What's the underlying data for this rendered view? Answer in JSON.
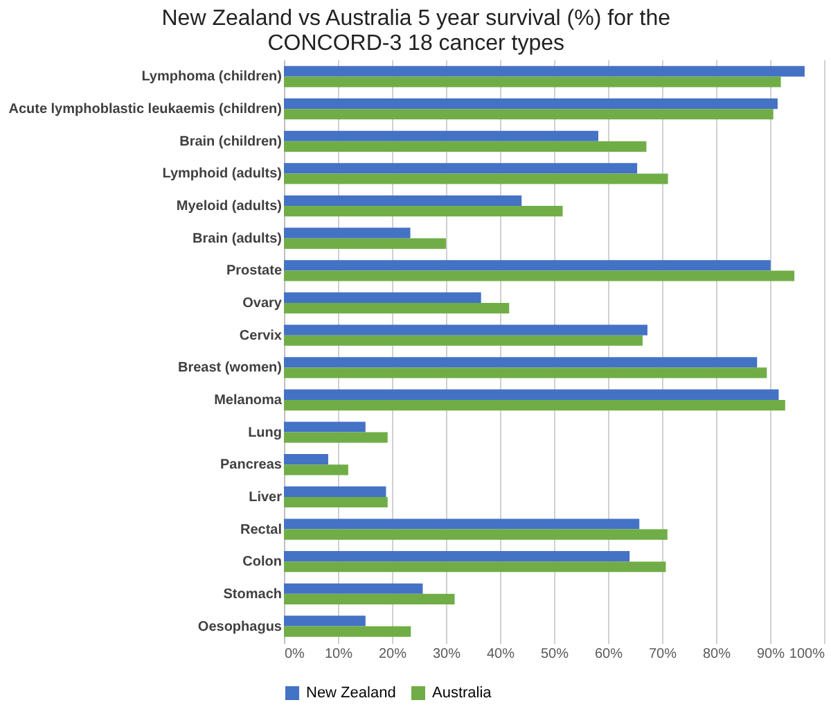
{
  "chart_data": {
    "type": "bar",
    "orientation": "horizontal",
    "title": [
      "New Zealand vs Australia 5 year survival (%) for the",
      "CONCORD-3 18 cancer types"
    ],
    "categories": [
      "Lymphoma (children)",
      "Acute lymphoblastic leukaemis (children)",
      "Brain (children)",
      "Lymphoid (adults)",
      "Myeloid (adults)",
      "Brain (adults)",
      "Prostate",
      "Ovary",
      "Cervix",
      "Breast (women)",
      "Melanoma",
      "Lung",
      "Pancreas",
      "Liver",
      "Rectal",
      "Colon",
      "Stomach",
      "Oesophagus"
    ],
    "series": [
      {
        "name": "New Zealand",
        "color": "#4472c4",
        "values": [
          96.4,
          91.4,
          58.2,
          65.4,
          44,
          23.4,
          90.1,
          36.5,
          67.3,
          87.6,
          91.6,
          15.1,
          8.2,
          18.9,
          65.8,
          64,
          25.7,
          15.1
        ]
      },
      {
        "name": "Australia",
        "color": "#70ad47",
        "values": [
          92,
          90.6,
          67.1,
          71.1,
          51.6,
          30,
          94.5,
          41.7,
          66.4,
          89.4,
          92.8,
          19.2,
          11.9,
          19.2,
          71,
          70.7,
          31.6,
          23.5
        ]
      }
    ],
    "xlim": [
      0,
      100
    ],
    "xticks": [
      {
        "value": 0,
        "label": "0%"
      },
      {
        "value": 10,
        "label": "10%"
      },
      {
        "value": 20,
        "label": "20%"
      },
      {
        "value": 30,
        "label": "30%"
      },
      {
        "value": 40,
        "label": "40%"
      },
      {
        "value": 50,
        "label": "50%"
      },
      {
        "value": 60,
        "label": "60%"
      },
      {
        "value": 70,
        "label": "70%"
      },
      {
        "value": 80,
        "label": "80%"
      },
      {
        "value": 90,
        "label": "90%"
      },
      {
        "value": 100,
        "label": "100%"
      }
    ],
    "grid": "x",
    "legend": "bottom"
  }
}
